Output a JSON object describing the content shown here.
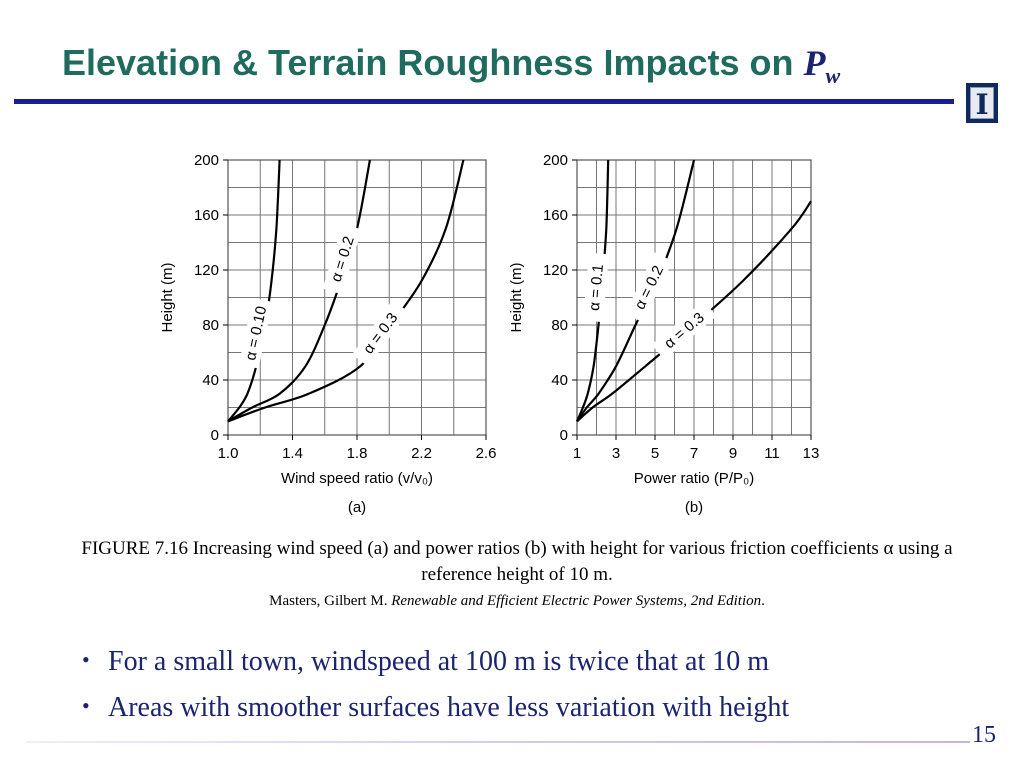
{
  "slide": {
    "title_text": "Elevation & Terrain Roughness Impacts on ",
    "title_symbol": "P",
    "title_subscript": "w",
    "logo_glyph": "I",
    "page_number": "15"
  },
  "caption": {
    "figure": "FIGURE 7.16 Increasing wind speed (a) and power ratios (b) with height for various friction coefficients α using a reference height of 10 m.",
    "citation_author": "Masters, Gilbert M. ",
    "citation_title": "Renewable and Efficient Electric Power Systems, 2nd Edition",
    "citation_end": "."
  },
  "bullets": [
    "For a small town, windspeed at 100 m is twice that at 10 m",
    "Areas with smoother surfaces have less variation with height"
  ],
  "chart_data": [
    {
      "type": "line",
      "panel_label": "(a)",
      "xlabel": "Wind speed ratio (v/v₀)",
      "ylabel": "Height (m)",
      "xlim": [
        1.0,
        2.6
      ],
      "ylim": [
        0,
        200
      ],
      "xticks": [
        "1.0",
        "1.4",
        "1.8",
        "2.2",
        "2.6"
      ],
      "yticks": [
        "0",
        "40",
        "80",
        "120",
        "160",
        "200"
      ],
      "grid": true,
      "series": [
        {
          "name": "α = 0.10",
          "x": [
            1.0,
            1.07,
            1.12,
            1.175,
            1.23,
            1.27,
            1.3,
            1.32
          ],
          "y": [
            10,
            20,
            30,
            50,
            80,
            112,
            150,
            200
          ]
        },
        {
          "name": "α = 0.2",
          "x": [
            1.0,
            1.15,
            1.32,
            1.48,
            1.6,
            1.7,
            1.8,
            1.88
          ],
          "y": [
            10,
            20,
            30,
            50,
            80,
            112,
            150,
            200
          ]
        },
        {
          "name": "α = 0.3",
          "x": [
            1.0,
            1.23,
            1.5,
            1.82,
            2.01,
            2.2,
            2.35,
            2.46
          ],
          "y": [
            10,
            20,
            30,
            50,
            80,
            112,
            150,
            200
          ]
        }
      ]
    },
    {
      "type": "line",
      "panel_label": "(b)",
      "xlabel": "Power ratio (P/P₀)",
      "ylabel": "Height (m)",
      "xlim": [
        1,
        13
      ],
      "ylim": [
        0,
        200
      ],
      "xticks": [
        "1",
        "3",
        "5",
        "7",
        "9",
        "11",
        "13"
      ],
      "yticks": [
        "0",
        "40",
        "80",
        "120",
        "160",
        "200"
      ],
      "grid": true,
      "series": [
        {
          "name": "α = 0.1",
          "x": [
            1.0,
            1.3,
            1.55,
            1.85,
            2.1,
            2.3,
            2.5,
            2.6
          ],
          "y": [
            10,
            20,
            30,
            50,
            80,
            112,
            150,
            200
          ]
        },
        {
          "name": "α = 0.2",
          "x": [
            1.0,
            1.5,
            2.1,
            3.0,
            4.0,
            5.1,
            6.1,
            7.0
          ],
          "y": [
            10,
            20,
            30,
            50,
            80,
            112,
            150,
            200
          ]
        },
        {
          "name": "α = 0.3",
          "x": [
            1.0,
            1.8,
            2.8,
            4.5,
            7.0,
            9.5,
            12.0,
            13.0
          ],
          "y": [
            10,
            20,
            30,
            50,
            80,
            112,
            150,
            170
          ]
        }
      ]
    }
  ]
}
